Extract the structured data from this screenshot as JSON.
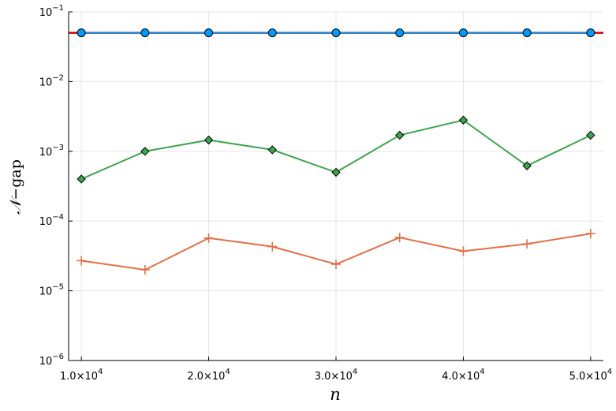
{
  "chart_data": {
    "type": "line",
    "xlabel": "n",
    "ylabel_parts": {
      "script_n": "𝒩",
      "dash": "−",
      "word": "gap"
    },
    "yscale": "log",
    "ylim": [
      1e-06,
      0.1
    ],
    "xlim": [
      9000,
      51000
    ],
    "grid": true,
    "legend": "none",
    "x_ticks": [
      {
        "mant": "1.0",
        "exp": "4",
        "value": 10000
      },
      {
        "mant": "2.0",
        "exp": "4",
        "value": 20000
      },
      {
        "mant": "3.0",
        "exp": "4",
        "value": 30000
      },
      {
        "mant": "4.0",
        "exp": "4",
        "value": 40000
      },
      {
        "mant": "5.0",
        "exp": "4",
        "value": 50000
      }
    ],
    "y_ticks": [
      {
        "base": "10",
        "exp": "−1",
        "value": 0.1
      },
      {
        "base": "10",
        "exp": "−2",
        "value": 0.01
      },
      {
        "base": "10",
        "exp": "−3",
        "value": 0.001
      },
      {
        "base": "10",
        "exp": "−4",
        "value": 0.0001
      },
      {
        "base": "10",
        "exp": "−5",
        "value": 1e-05
      },
      {
        "base": "10",
        "exp": "−6",
        "value": 1e-06
      }
    ],
    "x": [
      10000,
      15000,
      20000,
      25000,
      30000,
      35000,
      40000,
      45000,
      50000
    ],
    "reference_line": {
      "y": 0.05,
      "color": "#cc0000"
    },
    "series": [
      {
        "marker": "circle",
        "color": "#009af9",
        "values": [
          0.05,
          0.05,
          0.05,
          0.05,
          0.05,
          0.05,
          0.05,
          0.05,
          0.05
        ]
      },
      {
        "marker": "cross",
        "color": "#e26f46",
        "values": [
          2.7e-05,
          2e-05,
          5.7e-05,
          4.3e-05,
          2.4e-05,
          5.8e-05,
          3.7e-05,
          4.7e-05,
          6.6e-05
        ]
      },
      {
        "marker": "diamond",
        "color": "#3da44d",
        "values": [
          0.0004,
          0.001,
          0.00145,
          0.00105,
          0.0005,
          0.0017,
          0.0028,
          0.00062,
          0.0017
        ]
      }
    ]
  }
}
